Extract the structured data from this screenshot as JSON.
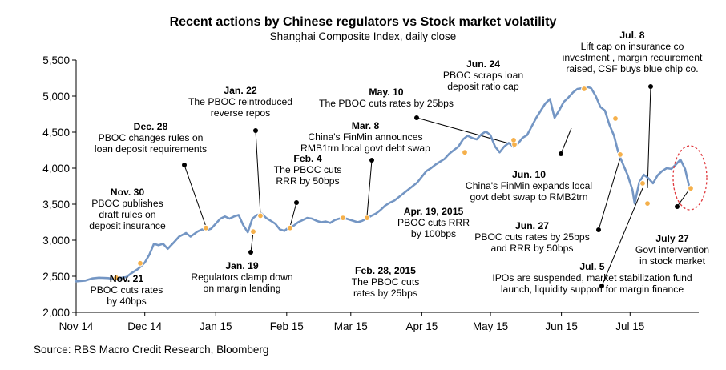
{
  "chart_data": {
    "type": "line",
    "title": "Recent actions by Chinese regulators vs Stock market volatility",
    "subtitle": "Shanghai Composite Index, daily close",
    "source": "Source: RBS Macro Credit Research, Bloomberg",
    "xlabel": "",
    "ylabel": "",
    "ylim": [
      2000,
      5500
    ],
    "y_ticks": [
      2000,
      2500,
      3000,
      3500,
      4000,
      4500,
      5000,
      5500
    ],
    "y_tick_labels": [
      "2,000",
      "2,500",
      "3,000",
      "3,500",
      "4,000",
      "4,500",
      "5,000",
      "5,500"
    ],
    "x_ticks": [
      {
        "label": "Nov 14",
        "day": 0
      },
      {
        "label": "Dec 14",
        "day": 30
      },
      {
        "label": "Jan 15",
        "day": 61
      },
      {
        "label": "Feb 15",
        "day": 92
      },
      {
        "label": "Mar 15",
        "day": 120
      },
      {
        "label": "Apr 15",
        "day": 151
      },
      {
        "label": "May 15",
        "day": 181
      },
      {
        "label": "Jun 15",
        "day": 212
      },
      {
        "label": "Jul 15",
        "day": 242
      }
    ],
    "x_range_days": [
      0,
      272
    ],
    "series": [
      {
        "name": "Shanghai Composite Index",
        "color": "#7496c4",
        "points": [
          [
            0,
            2430
          ],
          [
            4,
            2440
          ],
          [
            7,
            2470
          ],
          [
            10,
            2480
          ],
          [
            14,
            2475
          ],
          [
            17,
            2460
          ],
          [
            20,
            2480
          ],
          [
            22,
            2490
          ],
          [
            24,
            2540
          ],
          [
            27,
            2600
          ],
          [
            30,
            2690
          ],
          [
            32,
            2800
          ],
          [
            34,
            2950
          ],
          [
            36,
            2930
          ],
          [
            38,
            2950
          ],
          [
            40,
            2880
          ],
          [
            43,
            2980
          ],
          [
            45,
            3050
          ],
          [
            48,
            3100
          ],
          [
            50,
            3050
          ],
          [
            53,
            3120
          ],
          [
            55,
            3150
          ],
          [
            57,
            3140
          ],
          [
            59,
            3160
          ],
          [
            61,
            3230
          ],
          [
            63,
            3300
          ],
          [
            65,
            3330
          ],
          [
            67,
            3300
          ],
          [
            69,
            3330
          ],
          [
            71,
            3350
          ],
          [
            73,
            3210
          ],
          [
            75,
            3110
          ],
          [
            77,
            3300
          ],
          [
            79,
            3350
          ],
          [
            81,
            3370
          ],
          [
            83,
            3310
          ],
          [
            85,
            3270
          ],
          [
            87,
            3230
          ],
          [
            89,
            3150
          ],
          [
            91,
            3130
          ],
          [
            93,
            3180
          ],
          [
            95,
            3200
          ],
          [
            97,
            3250
          ],
          [
            99,
            3280
          ],
          [
            101,
            3310
          ],
          [
            103,
            3300
          ],
          [
            105,
            3270
          ],
          [
            107,
            3250
          ],
          [
            109,
            3260
          ],
          [
            111,
            3240
          ],
          [
            113,
            3280
          ],
          [
            115,
            3300
          ],
          [
            117,
            3310
          ],
          [
            119,
            3290
          ],
          [
            121,
            3270
          ],
          [
            123,
            3250
          ],
          [
            125,
            3270
          ],
          [
            127,
            3300
          ],
          [
            129,
            3340
          ],
          [
            131,
            3370
          ],
          [
            133,
            3420
          ],
          [
            135,
            3480
          ],
          [
            137,
            3520
          ],
          [
            139,
            3550
          ],
          [
            141,
            3600
          ],
          [
            143,
            3650
          ],
          [
            145,
            3700
          ],
          [
            147,
            3750
          ],
          [
            149,
            3800
          ],
          [
            151,
            3880
          ],
          [
            153,
            3960
          ],
          [
            155,
            4000
          ],
          [
            157,
            4050
          ],
          [
            159,
            4090
          ],
          [
            161,
            4130
          ],
          [
            163,
            4200
          ],
          [
            165,
            4250
          ],
          [
            167,
            4300
          ],
          [
            169,
            4400
          ],
          [
            171,
            4450
          ],
          [
            173,
            4420
          ],
          [
            175,
            4400
          ],
          [
            177,
            4470
          ],
          [
            179,
            4510
          ],
          [
            181,
            4460
          ],
          [
            183,
            4300
          ],
          [
            185,
            4220
          ],
          [
            187,
            4300
          ],
          [
            189,
            4350
          ],
          [
            191,
            4300
          ],
          [
            193,
            4340
          ],
          [
            195,
            4420
          ],
          [
            197,
            4460
          ],
          [
            199,
            4580
          ],
          [
            201,
            4700
          ],
          [
            203,
            4800
          ],
          [
            205,
            4900
          ],
          [
            207,
            4960
          ],
          [
            209,
            4700
          ],
          [
            211,
            4800
          ],
          [
            213,
            4920
          ],
          [
            215,
            4980
          ],
          [
            217,
            5050
          ],
          [
            219,
            5100
          ],
          [
            221,
            5110
          ],
          [
            223,
            5130
          ],
          [
            225,
            5110
          ],
          [
            227,
            5000
          ],
          [
            229,
            4850
          ],
          [
            231,
            4800
          ],
          [
            233,
            4600
          ],
          [
            235,
            4450
          ],
          [
            237,
            4200
          ],
          [
            239,
            4050
          ],
          [
            241,
            3900
          ],
          [
            243,
            3700
          ],
          [
            244,
            3510
          ],
          [
            246,
            3800
          ],
          [
            248,
            3910
          ],
          [
            250,
            3860
          ],
          [
            252,
            3790
          ],
          [
            254,
            3900
          ],
          [
            256,
            3960
          ],
          [
            258,
            4000
          ],
          [
            260,
            3990
          ],
          [
            262,
            4050
          ],
          [
            264,
            4120
          ],
          [
            266,
            3990
          ],
          [
            268,
            3720
          ]
        ]
      }
    ],
    "event_markers": [
      {
        "label": "Nov. 21",
        "value": 2480
      },
      {
        "label": "Nov. 30",
        "value": 2680
      },
      {
        "label": "Dec. 28",
        "value": 3170
      },
      {
        "label": "Jan. 19",
        "value": 3120
      },
      {
        "label": "Jan. 22",
        "value": 3340
      },
      {
        "label": "Feb. 4",
        "value": 3170
      },
      {
        "label": "Feb. 28, 2015",
        "value": 3310
      },
      {
        "label": "Mar. 8",
        "value": 3310
      },
      {
        "label": "Apr. 19, 2015",
        "value": 4220
      },
      {
        "label": "May. 10",
        "value": 4330
      },
      {
        "label": "Jun. 10",
        "value": 4390
      },
      {
        "label": "Jun. 24",
        "value": 5100
      },
      {
        "label": "Jun. 27",
        "value": 4690
      },
      {
        "label": "Jun. 27",
        "value": 4190
      },
      {
        "label": "Jul. 5",
        "value": 3790
      },
      {
        "label": "Jul. 8",
        "value": 3510
      },
      {
        "label": "July 27",
        "value": 3720
      }
    ],
    "annotations": [
      {
        "id": "nov21",
        "bold": "Nov. 21",
        "lines": [
          "PBOC cuts rates",
          "by 40bps"
        ]
      },
      {
        "id": "nov30",
        "bold": "Nov. 30",
        "lines": [
          "PBOC publishes",
          "draft rules on",
          "deposit insurance"
        ]
      },
      {
        "id": "dec28",
        "bold": "Dec. 28",
        "lines": [
          "PBOC changes rules on",
          "loan deposit requirements"
        ]
      },
      {
        "id": "jan19",
        "bold": "Jan. 19",
        "lines": [
          "Regulators clamp down",
          "on margin lending"
        ]
      },
      {
        "id": "jan22",
        "bold": "Jan. 22",
        "lines": [
          "The PBOC reintroduced",
          "reverse repos"
        ]
      },
      {
        "id": "feb4",
        "bold": "Feb. 4",
        "lines": [
          "The PBOC cuts",
          "RRR by 50bps"
        ]
      },
      {
        "id": "feb28",
        "bold": "Feb. 28, 2015",
        "lines": [
          "The PBOC cuts",
          "rates by 25bps"
        ]
      },
      {
        "id": "mar8",
        "bold": "Mar. 8",
        "lines": [
          "China's FinMin  announces",
          "RMB1trn local govt debt swap"
        ]
      },
      {
        "id": "apr19",
        "bold": "Apr. 19, 2015",
        "lines": [
          "PBOC cuts RRR",
          "by 100bps"
        ]
      },
      {
        "id": "may10",
        "bold": "May. 10",
        "lines": [
          "The PBOC cuts rates by 25bps"
        ]
      },
      {
        "id": "jun10",
        "bold": "Jun. 10",
        "lines": [
          "China's FinMin  expands local",
          "govt debt swap to RMB2trn"
        ]
      },
      {
        "id": "jun24",
        "bold": "Jun. 24",
        "lines": [
          "PBOC scraps loan",
          "deposit ratio cap"
        ]
      },
      {
        "id": "jun27",
        "bold": "Jun. 27",
        "lines": [
          "PBOC cuts rates by 25bps",
          "and RRR by 50bps"
        ]
      },
      {
        "id": "jul5",
        "bold": "Jul. 5",
        "lines": [
          "IPOs are suspended, market stabilization  fund",
          "launch, liquidity support for margin finance"
        ]
      },
      {
        "id": "jul8",
        "bold": "Jul. 8",
        "lines": [
          "Lift cap on insurance co",
          "investment , margin requirement",
          "raised, CSF buys blue chip co."
        ]
      },
      {
        "id": "jul27",
        "bold": "July 27",
        "lines": [
          "Govt intervention",
          "in stock market"
        ]
      }
    ],
    "colors": {
      "line": "#7496c4",
      "marker": "#f5b04b",
      "highlight_circle": "#e0393e"
    }
  }
}
